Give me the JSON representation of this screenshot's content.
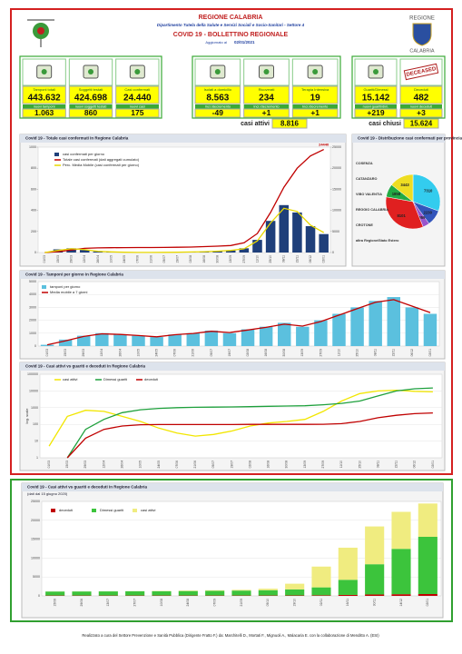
{
  "header": {
    "region": "REGIONE CALABRIA",
    "department": "Dipartimento Tutela della Salute e Servizi Sociali e Socio-Sanitari - Settore 4",
    "title": "COVID 19 - BOLLETTINO REGIONALE",
    "updated_label": "Aggiornato al",
    "updated_date": "02/01/2021",
    "logo_line1": "REGIONE",
    "logo_line2": "CALABRIA"
  },
  "stats": {
    "groups": [
      {
        "tiles": [
          {
            "label": "Tamponi totali",
            "value": "443.632",
            "sub_label": "nuovi tamponi",
            "sub_value": "1.063"
          },
          {
            "label": "Soggetti testati",
            "value": "424.698",
            "sub_label": "nuovi soggetti testati",
            "sub_value": "860"
          },
          {
            "label": "Casi confermati",
            "value": "24.440",
            "sub_label": "nuovi casi",
            "sub_value": "175"
          }
        ]
      },
      {
        "tiles": [
          {
            "label": "Isolati a domicilio",
            "value": "8.563",
            "sub_label": "Incr./decremento",
            "sub_value": "-49"
          },
          {
            "label": "Ricoverati",
            "value": "234",
            "sub_label": "Incr./decremento",
            "sub_value": "+1"
          },
          {
            "label": "Terapia Intensiva",
            "value": "19",
            "sub_label": "Incr./decremento",
            "sub_value": "+1"
          }
        ],
        "summary_label": "casi attivi",
        "summary_value": "8.816"
      },
      {
        "tiles": [
          {
            "label": "Guariti/Dimessi",
            "value": "15.142",
            "sub_label": "nuovi guariti/dim.",
            "sub_value": "+219"
          },
          {
            "label": "Deceduti",
            "value": "482",
            "sub_label": "nuovi deceduti",
            "sub_value": "+3",
            "icon_text": "DECEASED"
          }
        ],
        "summary_label": "casi chiusi",
        "summary_value": "15.624"
      }
    ]
  },
  "chart_data": [
    {
      "type": "combo",
      "title": "Covid 19 - Totale casi confermati in Regione Calabria",
      "categories": [
        "01/03",
        "15/03",
        "29/03",
        "12/04",
        "26/04",
        "10/05",
        "24/05",
        "07/06",
        "21/06",
        "05/07",
        "19/07",
        "02/08",
        "16/08",
        "30/08",
        "13/09",
        "27/09",
        "11/10",
        "25/10",
        "08/11",
        "22/11",
        "06/12",
        "02/01"
      ],
      "series": [
        {
          "name": "casi confermati per giorno",
          "kind": "bar",
          "color": "#1f3f7a",
          "values": [
            0,
            30,
            40,
            25,
            10,
            5,
            2,
            1,
            1,
            2,
            3,
            5,
            8,
            15,
            20,
            40,
            120,
            300,
            450,
            380,
            250,
            175
          ]
        },
        {
          "name": "Totale casi confermati (dati aggregati cumulato)",
          "kind": "line",
          "axis": "y2",
          "color": "#c00000",
          "values": [
            0,
            200,
            600,
            1000,
            1100,
            1150,
            1170,
            1180,
            1190,
            1200,
            1250,
            1300,
            1400,
            1500,
            1650,
            2300,
            4500,
            9500,
            15500,
            20000,
            22900,
            24440
          ]
        },
        {
          "name": "Perc. Media Mobile (casi confermati per giorno)",
          "kind": "line",
          "color": "#e8d800",
          "values": [
            0,
            20,
            35,
            28,
            12,
            6,
            3,
            1,
            1,
            2,
            3,
            5,
            8,
            13,
            20,
            35,
            110,
            280,
            420,
            390,
            260,
            190
          ]
        }
      ],
      "ylim": [
        0,
        1000
      ],
      "yticks": [
        0,
        200,
        400,
        600,
        800,
        1000
      ],
      "y2lim": [
        0,
        25000
      ],
      "y2ticks": [
        0,
        5000,
        10000,
        15000,
        20000,
        25000
      ],
      "annotation": "24440",
      "grid": false
    },
    {
      "type": "pie",
      "title": "Covid 19 - Distribuzione casi confermati per provincia",
      "categories": [
        "COSENZA",
        "CATANZARO",
        "VIBO VALENTIA",
        "REGGIO CALABRIA",
        "CROTONE",
        "altra Regione/Stato Estero"
      ],
      "colors": [
        "#33ccee",
        "#3355bb",
        "#9955cc",
        "#e02020",
        "#22aa44",
        "#eedd22"
      ],
      "values": [
        7310,
        2230,
        959,
        8101,
        1858,
        3443
      ]
    },
    {
      "type": "combo",
      "title": "Covid 19 - Tamponi per giorno in Regione Calabria",
      "categories": [
        "01/03",
        "15/03",
        "29/03",
        "12/04",
        "26/04",
        "10/05",
        "24/05",
        "07/06",
        "21/06",
        "05/07",
        "19/07",
        "02/08",
        "16/08",
        "30/08",
        "13/09",
        "27/09",
        "11/10",
        "25/10",
        "08/11",
        "22/11",
        "06/12",
        "02/01"
      ],
      "series": [
        {
          "name": "tamponi per giorno",
          "kind": "bar",
          "color": "#5bc0de",
          "values": [
            100,
            500,
            800,
            1000,
            900,
            800,
            700,
            900,
            1000,
            1200,
            1000,
            1300,
            1500,
            1800,
            1500,
            2000,
            2500,
            3000,
            3500,
            3800,
            3000,
            2500
          ]
        },
        {
          "name": "Media mobile a 7 giorni",
          "kind": "line",
          "color": "#c00000",
          "values": [
            100,
            400,
            750,
            950,
            900,
            820,
            720,
            880,
            980,
            1150,
            1050,
            1250,
            1450,
            1700,
            1550,
            1900,
            2400,
            2900,
            3400,
            3600,
            3100,
            2600
          ]
        }
      ],
      "ylim": [
        0,
        5000
      ],
      "yticks": [
        0,
        1000,
        2000,
        3000,
        4000,
        5000
      ],
      "grid": true
    },
    {
      "type": "combo",
      "title": "Covid 19 - Casi attivi vs guariti e deceduti in Regione Calabria",
      "y_label": "log. scale",
      "log": true,
      "categories": [
        "01/03",
        "15/03",
        "29/03",
        "12/04",
        "26/04",
        "10/05",
        "24/05",
        "07/06",
        "21/06",
        "05/07",
        "19/07",
        "02/08",
        "16/08",
        "30/08",
        "13/09",
        "27/09",
        "11/10",
        "25/10",
        "08/11",
        "22/11",
        "06/12",
        "02/01"
      ],
      "series": [
        {
          "name": "casi attivi",
          "kind": "line",
          "color": "#f2e600",
          "values": [
            5,
            300,
            700,
            600,
            300,
            150,
            60,
            30,
            20,
            25,
            40,
            80,
            120,
            150,
            200,
            600,
            2500,
            7000,
            10000,
            11000,
            9500,
            8816
          ]
        },
        {
          "name": "Dimessi guariti",
          "kind": "line",
          "color": "#1ea03c",
          "values": [
            null,
            1,
            50,
            200,
            500,
            750,
            900,
            1000,
            1050,
            1080,
            1100,
            1150,
            1200,
            1250,
            1300,
            1500,
            1800,
            2500,
            5000,
            10000,
            13500,
            15142
          ]
        },
        {
          "name": "deceduti",
          "kind": "line",
          "color": "#c00000",
          "values": [
            null,
            1,
            15,
            50,
            80,
            95,
            97,
            97,
            97,
            97,
            98,
            100,
            100,
            100,
            100,
            101,
            110,
            150,
            250,
            350,
            440,
            482
          ]
        }
      ],
      "ylim": [
        1,
        100000
      ],
      "yticks": [
        1,
        10,
        100,
        1000,
        10000,
        100000
      ],
      "grid": true
    },
    {
      "type": "stacked",
      "title": "Covid 19 - Casi attivi vs guariti e deceduti in Regione Calabria",
      "subtitle": "(dati dal 15 giugno 2020)",
      "categories": [
        "15/06",
        "29/06",
        "13/07",
        "27/07",
        "10/08",
        "24/08",
        "07/09",
        "21/09",
        "05/10",
        "19/10",
        "02/11",
        "16/11",
        "30/11",
        "14/12",
        "02/01"
      ],
      "series": [
        {
          "name": "deceduti",
          "kind": "bar",
          "color": "#c00000",
          "values": [
            97,
            97,
            97,
            98,
            100,
            100,
            100,
            101,
            103,
            115,
            150,
            250,
            370,
            440,
            482
          ]
        },
        {
          "name": "Dimessi guariti",
          "kind": "bar",
          "color": "#3cc43c",
          "values": [
            1050,
            1070,
            1090,
            1110,
            1140,
            1180,
            1240,
            1300,
            1400,
            1600,
            2100,
            4000,
            8000,
            12000,
            15142
          ]
        },
        {
          "name": "casi attivi",
          "kind": "bar",
          "color": "#f0ec80",
          "values": [
            20,
            25,
            30,
            40,
            80,
            130,
            150,
            200,
            400,
            1500,
            5500,
            8500,
            10000,
            9800,
            8816
          ]
        }
      ],
      "ylim": [
        0,
        25000
      ],
      "yticks": [
        0,
        5000,
        10000,
        15000,
        20000,
        25000
      ],
      "grid": true
    }
  ],
  "footer": "Realizzato a cura del Settore Prevenzione e Sanità Pubblica (Dirigente Fratto F.) da: Marchitelli D., Mortati F., Mignuoli A., Malacaria E. con la collaborazione di Menditto A. (ESI)"
}
